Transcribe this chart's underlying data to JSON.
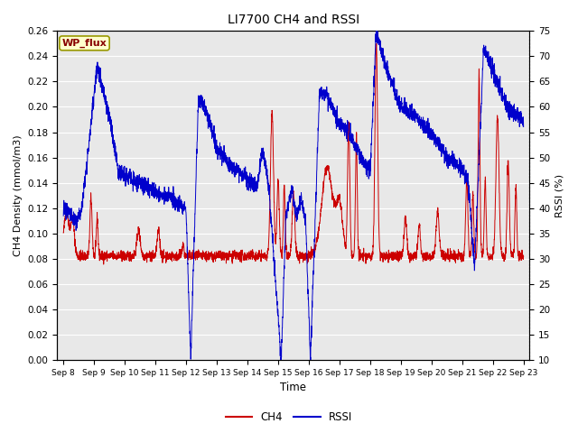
{
  "title": "LI7700 CH4 and RSSI",
  "xlabel": "Time",
  "ylabel_left": "CH4 Density (mmol/m3)",
  "ylabel_right": "RSSI (%)",
  "ylim_left": [
    0.0,
    0.26
  ],
  "ylim_right": [
    10,
    75
  ],
  "yticks_left": [
    0.0,
    0.02,
    0.04,
    0.06,
    0.08,
    0.1,
    0.12,
    0.14,
    0.16,
    0.18,
    0.2,
    0.22,
    0.24,
    0.26
  ],
  "yticks_right": [
    10,
    15,
    20,
    25,
    30,
    35,
    40,
    45,
    50,
    55,
    60,
    65,
    70,
    75
  ],
  "ch4_color": "#CC0000",
  "rssi_color": "#0000CC",
  "bg_color": "#E8E8E8",
  "grid_color": "#FFFFFF",
  "wp_flux_box_color": "#FFFFCC",
  "wp_flux_border_color": "#999900",
  "annotation_text": "WP_flux",
  "xtick_labels": [
    "Sep 8",
    "Sep 9",
    "Sep 10",
    "Sep 11",
    "Sep 12",
    "Sep 13",
    "Sep 14",
    "Sep 15",
    "Sep 16",
    "Sep 17",
    "Sep 18",
    "Sep 19",
    "Sep 20",
    "Sep 21",
    "Sep 22",
    "Sep 23"
  ],
  "n_points": 3000,
  "figsize": [
    6.4,
    4.8
  ],
  "dpi": 100
}
